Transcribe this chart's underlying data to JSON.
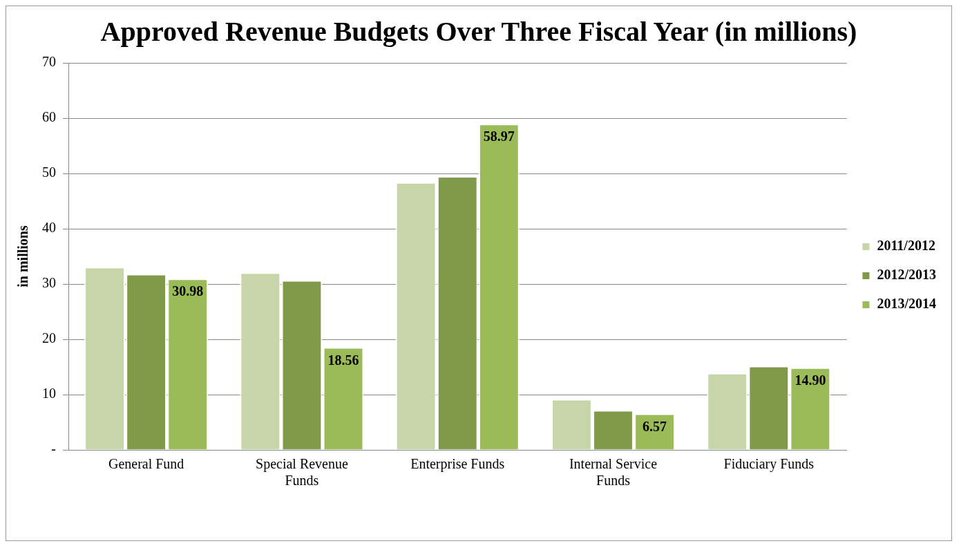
{
  "chart_data": {
    "type": "bar",
    "title": "Approved Revenue Budgets Over Three Fiscal Year  (in millions)",
    "ylabel": "in millions",
    "categories": [
      "General Fund",
      "Special Revenue Funds",
      "Enterprise Funds",
      "Internal Service Funds",
      "Fiduciary Funds"
    ],
    "series": [
      {
        "name": "2011/2012",
        "color": "#c6d6a9",
        "values": [
          33.1,
          32.1,
          48.4,
          9.2,
          13.9
        ]
      },
      {
        "name": "2012/2013",
        "color": "#7f9a48",
        "values": [
          31.8,
          30.7,
          49.5,
          7.2,
          15.2
        ]
      },
      {
        "name": "2013/2014",
        "color": "#9bbb59",
        "values": [
          30.98,
          18.56,
          58.97,
          6.57,
          14.9
        ],
        "value_labels": [
          "30.98",
          "18.56",
          "58.97",
          "6.57",
          "14.90"
        ]
      }
    ],
    "ylim": [
      0,
      70
    ],
    "yticks": [
      {
        "value": 0,
        "label": "-"
      },
      10,
      20,
      30,
      40,
      50,
      60,
      70
    ],
    "grid": "y",
    "legend": "right"
  }
}
